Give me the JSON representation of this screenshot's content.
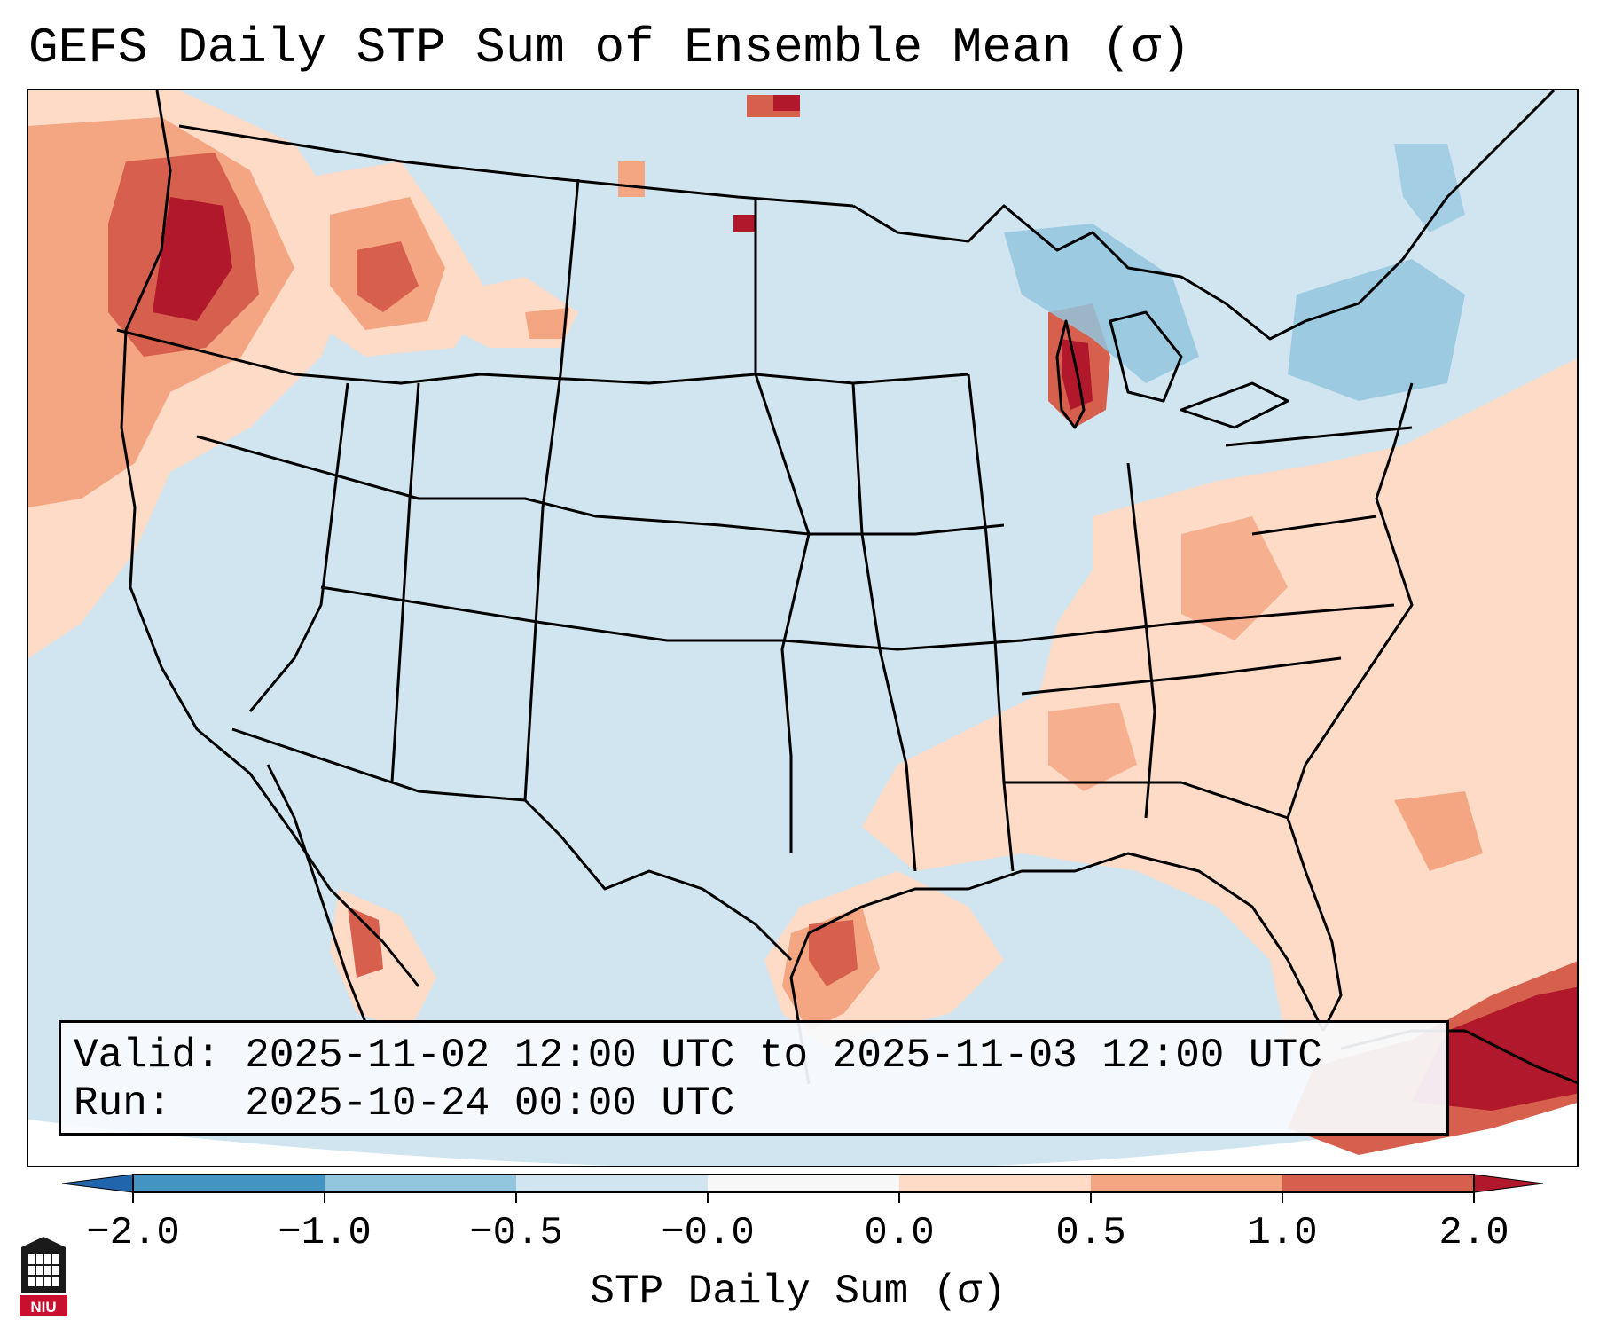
{
  "map": {
    "title": "GEFS Daily STP Sum of Ensemble Mean (σ)",
    "region": "Continental United States",
    "valid_line": "Valid: 2025-11-02 12:00 UTC to 2025-11-03 12:00 UTC",
    "run_line": "Run:   2025-10-24 00:00 UTC",
    "colorbar": {
      "label": "STP Daily Sum (σ)",
      "ticks": [
        "−2.0",
        "−1.0",
        "−0.5",
        "−0.0",
        "0.0",
        "0.5",
        "1.0",
        "2.0"
      ],
      "bins": [
        {
          "range": "< -2.0",
          "color": "#2166ac"
        },
        {
          "range": "-2.0 to -1.0",
          "color": "#4393c3"
        },
        {
          "range": "-1.0 to -0.5",
          "color": "#92c5de"
        },
        {
          "range": "-0.5 to -0.0",
          "color": "#d1e5f0"
        },
        {
          "range": "-0.0 to 0.0",
          "color": "#f7f7f7"
        },
        {
          "range": "0.0 to 0.5",
          "color": "#fddbc7"
        },
        {
          "range": "0.5 to 1.0",
          "color": "#f4a582"
        },
        {
          "range": "1.0 to 2.0",
          "color": "#d6604d"
        },
        {
          "range": "> 2.0",
          "color": "#b2182b"
        }
      ]
    },
    "anomaly_regions": [
      {
        "area": "Pacific Northwest / Oregon coast",
        "level": "1.0 to >2.0"
      },
      {
        "area": "Northern Idaho / Montana",
        "level": "0.5 to >2.0"
      },
      {
        "area": "Lake Michigan",
        "level": "1.0 to >2.0"
      },
      {
        "area": "Upper Texas coast",
        "level": "1.0 to 2.0"
      },
      {
        "area": "Cuba / Bahamas",
        "level": "> 2.0"
      },
      {
        "area": "Southeast US / Atlantic",
        "level": "0.0 to 1.0"
      },
      {
        "area": "Great Lakes / Northeast",
        "level": "-1.0 to -0.5"
      }
    ]
  },
  "logo": {
    "text": "NIU"
  }
}
